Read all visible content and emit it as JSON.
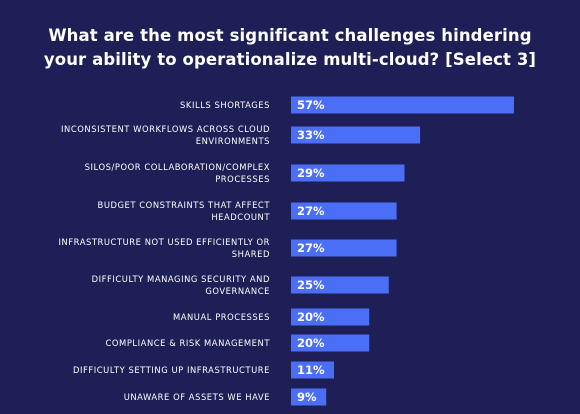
{
  "chart_data": {
    "type": "bar",
    "orientation": "horizontal",
    "title_lines": [
      "What are the most significant challenges hindering",
      "your ability to operationalize multi-cloud? [Select 3]"
    ],
    "categories": [
      [
        "SKILLS SHORTAGES"
      ],
      [
        "INCONSISTENT WORKFLOWS ACROSS CLOUD",
        "ENVIRONMENTS"
      ],
      [
        "SILOS/POOR COLLABORATION/COMPLEX",
        "PROCESSES"
      ],
      [
        "BUDGET CONSTRAINTS THAT AFFECT",
        "HEADCOUNT"
      ],
      [
        "INFRASTRUCTURE NOT USED EFFICIENTLY OR",
        "SHARED"
      ],
      [
        "DIFFICULTY MANAGING SECURITY AND",
        "GOVERNANCE"
      ],
      [
        "MANUAL PROCESSES"
      ],
      [
        "COMPLIANCE & RISK MANAGEMENT"
      ],
      [
        "DIFFICULTY SETTING UP INFRASTRUCTURE"
      ],
      [
        "UNAWARE OF ASSETS WE HAVE"
      ]
    ],
    "values": [
      57,
      33,
      29,
      27,
      27,
      25,
      20,
      20,
      11,
      9
    ],
    "value_labels": [
      "57%",
      "33%",
      "29%",
      "27%",
      "27%",
      "25%",
      "20%",
      "20%",
      "11%",
      "9%"
    ],
    "bar_color": "#4a6ef5",
    "background_color": "#1e1f57",
    "text_color": "#ffffff"
  }
}
